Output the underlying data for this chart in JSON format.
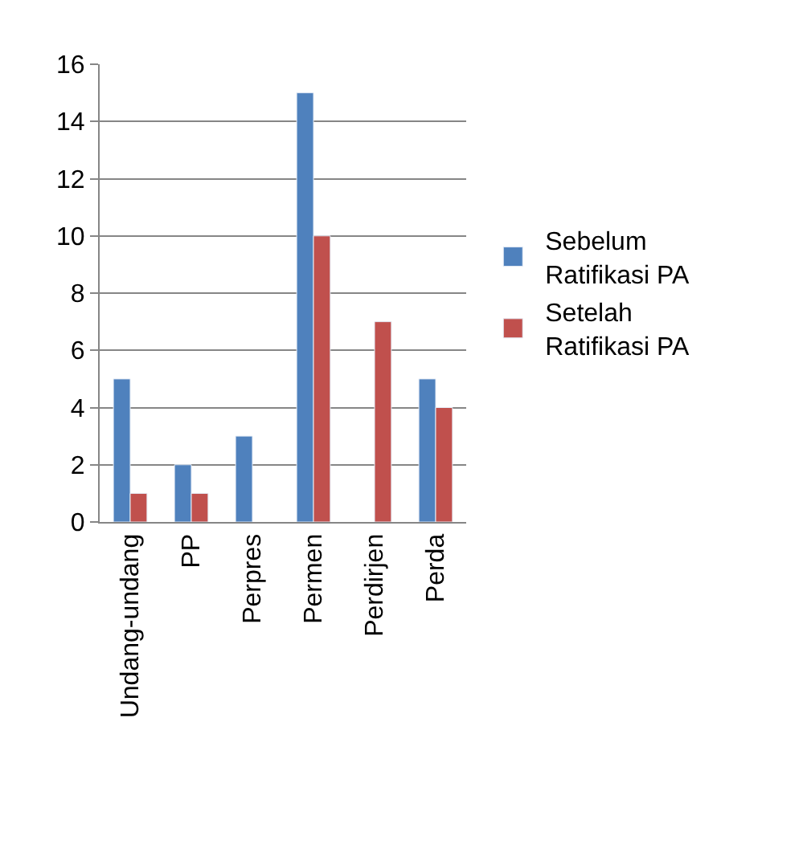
{
  "chart_data": {
    "type": "bar",
    "categories": [
      "Undang-undang",
      "PP",
      "Perpres",
      "Permen",
      "Perdirjen",
      "Perda"
    ],
    "series": [
      {
        "name": "Sebelum Ratifikasi PA",
        "color": "#4f81bd",
        "values": [
          5,
          2,
          3,
          15,
          null,
          5
        ]
      },
      {
        "name": "Setelah Ratifikasi PA",
        "color": "#c0504d",
        "values": [
          1,
          1,
          null,
          10,
          7,
          4
        ]
      }
    ],
    "ylim": [
      0,
      16
    ],
    "yticks": [
      0,
      2,
      4,
      6,
      8,
      10,
      12,
      14,
      16
    ],
    "grid": "y",
    "legend": "right"
  }
}
